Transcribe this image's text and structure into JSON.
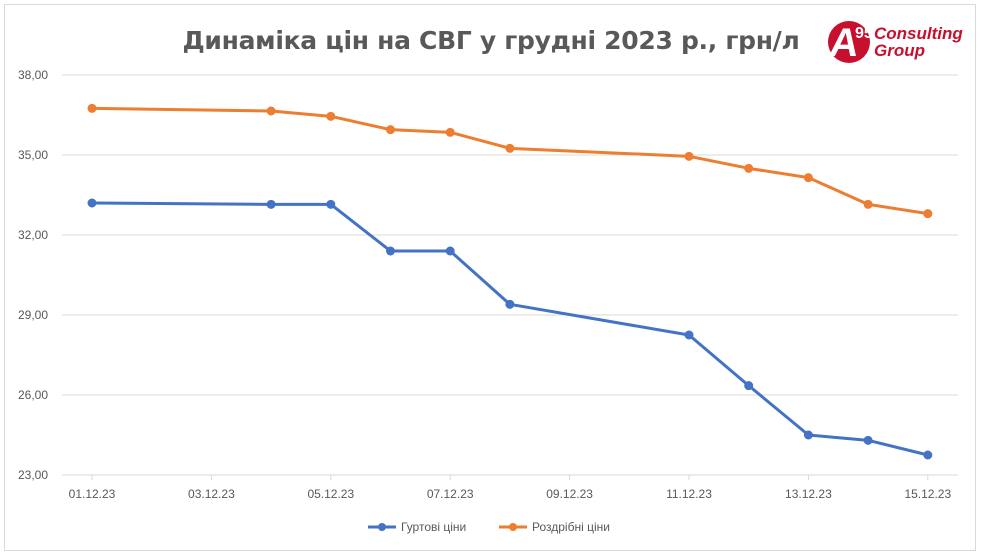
{
  "chart_data": {
    "type": "line",
    "title": "Динаміка цін на СВГ у грудні 2023 р., грн/л",
    "x": [
      "01.12.23",
      "04.12.23",
      "05.12.23",
      "06.12.23",
      "07.12.23",
      "08.12.23",
      "11.12.23",
      "12.12.23",
      "13.12.23",
      "14.12.23",
      "15.12.23"
    ],
    "x_dates": [
      "2023-12-01",
      "2023-12-04",
      "2023-12-05",
      "2023-12-06",
      "2023-12-07",
      "2023-12-08",
      "2023-12-11",
      "2023-12-12",
      "2023-12-13",
      "2023-12-14",
      "2023-12-15"
    ],
    "x_tick_labels": [
      "01.12.23",
      "03.12.23",
      "05.12.23",
      "07.12.23",
      "09.12.23",
      "11.12.23",
      "13.12.23",
      "15.12.23"
    ],
    "series": [
      {
        "name": "Гуртові ціни",
        "color": "#4472c4",
        "values": [
          33.2,
          33.15,
          33.15,
          31.4,
          31.4,
          29.4,
          28.25,
          26.35,
          24.5,
          24.3,
          23.75
        ]
      },
      {
        "name": "Роздрібні ціни",
        "color": "#ed7d31",
        "values": [
          36.75,
          36.65,
          36.45,
          35.95,
          35.85,
          35.25,
          34.95,
          34.5,
          34.15,
          33.15,
          32.8
        ]
      }
    ],
    "y_tick_labels": [
      "23,00",
      "26,00",
      "29,00",
      "32,00",
      "35,00",
      "38,00"
    ],
    "ylim": [
      23,
      38
    ],
    "grid": true,
    "legend": "bottom"
  },
  "logo": {
    "mark_letter": "A",
    "mark_number": "95",
    "line1": "Consulting",
    "line2": "Group",
    "brand_color": "#c8102e"
  }
}
